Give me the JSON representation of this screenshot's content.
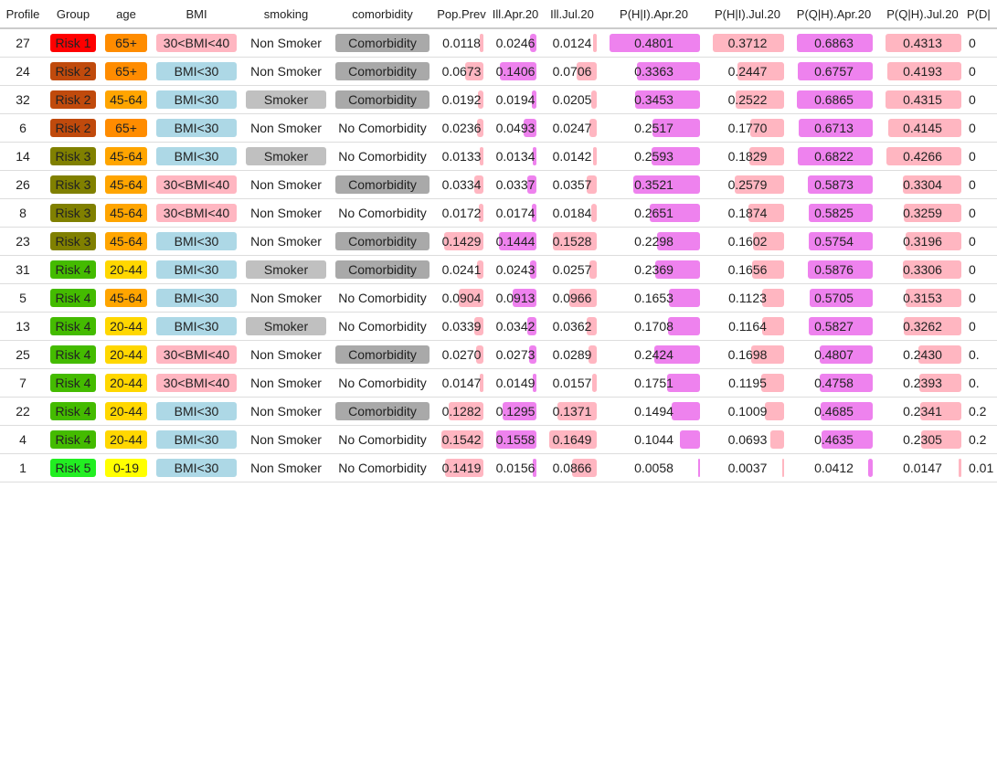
{
  "table": {
    "columns": [
      "Profile",
      "Group",
      "age",
      "BMI",
      "smoking",
      "comorbidity",
      "Pop.Prev",
      "Ill.Apr.20",
      "Ill.Jul.20",
      "P(H|I).Apr.20",
      "P(H|I).Jul.20",
      "P(Q|H).Apr.20",
      "P(Q|H).Jul.20",
      "P(D|"
    ],
    "rows": [
      [
        "27",
        "Risk 1",
        "65+",
        "30<BMI<40",
        "Non Smoker",
        "Comorbidity",
        "0.0118",
        "0.0246",
        "0.0124",
        "0.4801",
        "0.3712",
        "0.6863",
        "0.4313",
        "0"
      ],
      [
        "24",
        "Risk 2",
        "65+",
        "BMI<30",
        "Non Smoker",
        "Comorbidity",
        "0.0673",
        "0.1406",
        "0.0706",
        "0.3363",
        "0.2447",
        "0.6757",
        "0.4193",
        "0"
      ],
      [
        "32",
        "Risk 2",
        "45-64",
        "BMI<30",
        "Smoker",
        "Comorbidity",
        "0.0192",
        "0.0194",
        "0.0205",
        "0.3453",
        "0.2522",
        "0.6865",
        "0.4315",
        "0"
      ],
      [
        "6",
        "Risk 2",
        "65+",
        "BMI<30",
        "Non Smoker",
        "No Comorbidity",
        "0.0236",
        "0.0493",
        "0.0247",
        "0.2517",
        "0.1770",
        "0.6713",
        "0.4145",
        "0"
      ],
      [
        "14",
        "Risk 3",
        "45-64",
        "BMI<30",
        "Smoker",
        "No Comorbidity",
        "0.0133",
        "0.0134",
        "0.0142",
        "0.2593",
        "0.1829",
        "0.6822",
        "0.4266",
        "0"
      ],
      [
        "26",
        "Risk 3",
        "45-64",
        "30<BMI<40",
        "Non Smoker",
        "Comorbidity",
        "0.0334",
        "0.0337",
        "0.0357",
        "0.3521",
        "0.2579",
        "0.5873",
        "0.3304",
        "0"
      ],
      [
        "8",
        "Risk 3",
        "45-64",
        "30<BMI<40",
        "Non Smoker",
        "No Comorbidity",
        "0.0172",
        "0.0174",
        "0.0184",
        "0.2651",
        "0.1874",
        "0.5825",
        "0.3259",
        "0"
      ],
      [
        "23",
        "Risk 3",
        "45-64",
        "BMI<30",
        "Non Smoker",
        "Comorbidity",
        "0.1429",
        "0.1444",
        "0.1528",
        "0.2298",
        "0.1602",
        "0.5754",
        "0.3196",
        "0"
      ],
      [
        "31",
        "Risk 4",
        "20-44",
        "BMI<30",
        "Smoker",
        "Comorbidity",
        "0.0241",
        "0.0243",
        "0.0257",
        "0.2369",
        "0.1656",
        "0.5876",
        "0.3306",
        "0"
      ],
      [
        "5",
        "Risk 4",
        "45-64",
        "BMI<30",
        "Non Smoker",
        "No Comorbidity",
        "0.0904",
        "0.0913",
        "0.0966",
        "0.1653",
        "0.1123",
        "0.5705",
        "0.3153",
        "0"
      ],
      [
        "13",
        "Risk 4",
        "20-44",
        "BMI<30",
        "Smoker",
        "No Comorbidity",
        "0.0339",
        "0.0342",
        "0.0362",
        "0.1708",
        "0.1164",
        "0.5827",
        "0.3262",
        "0"
      ],
      [
        "25",
        "Risk 4",
        "20-44",
        "30<BMI<40",
        "Non Smoker",
        "Comorbidity",
        "0.0270",
        "0.0273",
        "0.0289",
        "0.2424",
        "0.1698",
        "0.4807",
        "0.2430",
        "0."
      ],
      [
        "7",
        "Risk 4",
        "20-44",
        "30<BMI<40",
        "Non Smoker",
        "No Comorbidity",
        "0.0147",
        "0.0149",
        "0.0157",
        "0.1751",
        "0.1195",
        "0.4758",
        "0.2393",
        "0."
      ],
      [
        "22",
        "Risk 4",
        "20-44",
        "BMI<30",
        "Non Smoker",
        "Comorbidity",
        "0.1282",
        "0.1295",
        "0.1371",
        "0.1494",
        "0.1009",
        "0.4685",
        "0.2341",
        "0.2"
      ],
      [
        "4",
        "Risk 4",
        "20-44",
        "BMI<30",
        "Non Smoker",
        "No Comorbidity",
        "0.1542",
        "0.1558",
        "0.1649",
        "0.1044",
        "0.0693",
        "0.4635",
        "0.2305",
        "0.2"
      ],
      [
        "1",
        "Risk 5",
        "0-19",
        "BMI<30",
        "Non Smoker",
        "No Comorbidity",
        "0.1419",
        "0.0156",
        "0.0866",
        "0.0058",
        "0.0037",
        "0.0412",
        "0.0147",
        "0.01"
      ]
    ]
  },
  "styles": {
    "pill_colors": {
      "Risk 1": "#ff0000",
      "Risk 2": "#c04a0c",
      "Risk 3": "#808000",
      "Risk 4": "#44bb00",
      "Risk 5": "#22ee22",
      "65+": "#ff8c00",
      "45-64": "#ffa500",
      "20-44": "#ffd700",
      "0-19": "#ffff00",
      "30<BMI<40": "#ffb6c1",
      "BMI<30": "#add8e6",
      "Smoker": "#c0c0c0",
      "Comorbidity": "#a9a9a9"
    },
    "bar_colors": [
      "#ffb6c1",
      "#ee82ee",
      "#ffb6c1",
      "#ee82ee",
      "#ffb6c1",
      "#ee82ee",
      "#ffb6c1"
    ]
  }
}
